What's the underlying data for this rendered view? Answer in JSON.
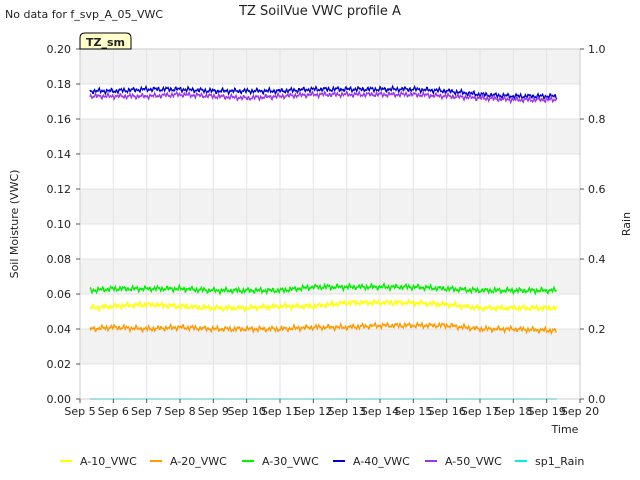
{
  "no_data_note": "No data for f_svp_A_05_VWC",
  "site_badge": "TZ_sm",
  "chart_data": {
    "type": "line",
    "title": "TZ SoilVue VWC profile A",
    "xlabel": "Time",
    "ylabel": "Soil Moisture (VWC)",
    "y2label": "Rain",
    "ylim": [
      0.0,
      0.2
    ],
    "y2lim": [
      0.0,
      1.0
    ],
    "xlim_days": [
      5,
      20
    ],
    "x_tick_labels": [
      "Sep 5",
      "Sep 6",
      "Sep 7",
      "Sep 8",
      "Sep 9",
      "Sep 10",
      "Sep 11",
      "Sep 12",
      "Sep 13",
      "Sep 14",
      "Sep 15",
      "Sep 16",
      "Sep 17",
      "Sep 18",
      "Sep 19",
      "Sep 20"
    ],
    "y_tick_labels": [
      "0.00",
      "0.02",
      "0.04",
      "0.06",
      "0.08",
      "0.10",
      "0.12",
      "0.14",
      "0.16",
      "0.18",
      "0.20"
    ],
    "y2_tick_labels": [
      "0.0",
      "0.2",
      "0.4",
      "0.6",
      "0.8",
      "1.0"
    ],
    "grid": true,
    "legend_position": "bottom",
    "series": [
      {
        "name": "A-10_VWC",
        "color": "#ffff00",
        "axis": "left",
        "x": [
          "Sep 5.3",
          "Sep 6",
          "Sep 7",
          "Sep 8",
          "Sep 9",
          "Sep 10",
          "Sep 11",
          "Sep 12",
          "Sep 13",
          "Sep 14",
          "Sep 15",
          "Sep 16",
          "Sep 17",
          "Sep 18",
          "Sep 19.3"
        ],
        "values": [
          0.052,
          0.053,
          0.054,
          0.053,
          0.052,
          0.052,
          0.053,
          0.053,
          0.055,
          0.055,
          0.055,
          0.054,
          0.052,
          0.052,
          0.052
        ]
      },
      {
        "name": "A-20_VWC",
        "color": "#ff9900",
        "axis": "left",
        "x": [
          "Sep 5.3",
          "Sep 6",
          "Sep 7",
          "Sep 8",
          "Sep 9",
          "Sep 10",
          "Sep 11",
          "Sep 12",
          "Sep 13",
          "Sep 14",
          "Sep 15",
          "Sep 16",
          "Sep 17",
          "Sep 18",
          "Sep 19.3"
        ],
        "values": [
          0.04,
          0.041,
          0.04,
          0.041,
          0.04,
          0.04,
          0.04,
          0.041,
          0.041,
          0.042,
          0.042,
          0.042,
          0.04,
          0.04,
          0.039
        ]
      },
      {
        "name": "A-30_VWC",
        "color": "#00ee00",
        "axis": "left",
        "x": [
          "Sep 5.3",
          "Sep 6",
          "Sep 7",
          "Sep 8",
          "Sep 9",
          "Sep 10",
          "Sep 11",
          "Sep 12",
          "Sep 13",
          "Sep 14",
          "Sep 15",
          "Sep 16",
          "Sep 17",
          "Sep 18",
          "Sep 19.3"
        ],
        "values": [
          0.062,
          0.063,
          0.063,
          0.063,
          0.062,
          0.062,
          0.062,
          0.064,
          0.064,
          0.064,
          0.064,
          0.063,
          0.062,
          0.062,
          0.062
        ]
      },
      {
        "name": "A-40_VWC",
        "color": "#0000cc",
        "axis": "left",
        "x": [
          "Sep 5.3",
          "Sep 6",
          "Sep 7",
          "Sep 8",
          "Sep 9",
          "Sep 10",
          "Sep 11",
          "Sep 12",
          "Sep 13",
          "Sep 14",
          "Sep 15",
          "Sep 16",
          "Sep 17",
          "Sep 18",
          "Sep 19.3"
        ],
        "values": [
          0.176,
          0.176,
          0.177,
          0.177,
          0.176,
          0.176,
          0.176,
          0.177,
          0.177,
          0.177,
          0.177,
          0.176,
          0.174,
          0.173,
          0.173
        ]
      },
      {
        "name": "A-50_VWC",
        "color": "#9933ee",
        "axis": "left",
        "x": [
          "Sep 5.3",
          "Sep 6",
          "Sep 7",
          "Sep 8",
          "Sep 9",
          "Sep 10",
          "Sep 11",
          "Sep 12",
          "Sep 13",
          "Sep 14",
          "Sep 15",
          "Sep 16",
          "Sep 17",
          "Sep 18",
          "Sep 19.3"
        ],
        "values": [
          0.173,
          0.173,
          0.173,
          0.174,
          0.173,
          0.172,
          0.173,
          0.174,
          0.174,
          0.174,
          0.174,
          0.173,
          0.172,
          0.171,
          0.171
        ]
      },
      {
        "name": "sp1_Rain",
        "color": "#00eeee",
        "axis": "right",
        "x": [
          "Sep 5.3",
          "Sep 19.3"
        ],
        "values": [
          0.0,
          0.0
        ]
      }
    ]
  }
}
